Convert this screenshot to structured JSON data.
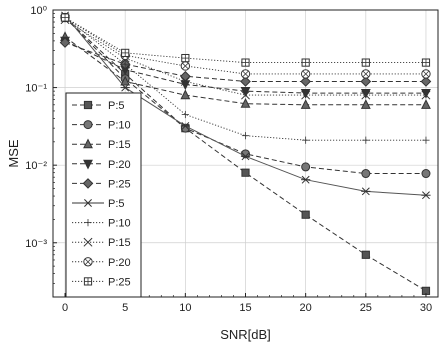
{
  "chart_data": {
    "type": "line",
    "title": "",
    "xlabel": "SNR[dB]",
    "ylabel": "MSE",
    "y_scale": "log",
    "xlim": [
      -1,
      31
    ],
    "ylim": [
      0.0002,
      1
    ],
    "grid": true,
    "legend_position": "left",
    "x": [
      0,
      5,
      10,
      15,
      20,
      25,
      30
    ],
    "x_ticks": [
      "0",
      "5",
      "10",
      "15",
      "20",
      "25",
      "30"
    ],
    "y_ticks": [
      "10⁰",
      "10⁻¹",
      "10⁻²",
      "10⁻³"
    ],
    "series": [
      {
        "name": "P:5",
        "style": "dashed",
        "marker": "square-filled",
        "values": [
          0.8,
          0.15,
          0.03,
          0.008,
          0.0023,
          0.0007,
          0.00024
        ]
      },
      {
        "name": "P:10",
        "style": "dashed",
        "marker": "circle-filled",
        "values": [
          0.8,
          0.13,
          0.03,
          0.014,
          0.0095,
          0.0078,
          0.0078
        ]
      },
      {
        "name": "P:15",
        "style": "dashed",
        "marker": "triangle-up-filled",
        "values": [
          0.45,
          0.12,
          0.08,
          0.062,
          0.06,
          0.06,
          0.06
        ]
      },
      {
        "name": "P:20",
        "style": "dashed",
        "marker": "triangle-down-filled",
        "values": [
          0.4,
          0.17,
          0.11,
          0.09,
          0.085,
          0.085,
          0.085
        ]
      },
      {
        "name": "P:25",
        "style": "dashed",
        "marker": "diamond-filled",
        "values": [
          0.38,
          0.2,
          0.14,
          0.12,
          0.12,
          0.12,
          0.12
        ]
      },
      {
        "name": "P:5",
        "style": "solid",
        "marker": "asterisk",
        "values": [
          0.85,
          0.1,
          0.032,
          0.013,
          0.0065,
          0.0046,
          0.0041
        ]
      },
      {
        "name": "P:10",
        "style": "dotted",
        "marker": "plus",
        "values": [
          0.8,
          0.2,
          0.045,
          0.024,
          0.021,
          0.021,
          0.021
        ]
      },
      {
        "name": "P:15",
        "style": "dotted",
        "marker": "x",
        "values": [
          0.75,
          0.24,
          0.12,
          0.08,
          0.08,
          0.08,
          0.08
        ]
      },
      {
        "name": "P:20",
        "style": "dotted",
        "marker": "circle-x",
        "values": [
          0.8,
          0.26,
          0.19,
          0.15,
          0.15,
          0.15,
          0.15
        ]
      },
      {
        "name": "P:25",
        "style": "dotted",
        "marker": "square-plus",
        "values": [
          0.8,
          0.28,
          0.24,
          0.21,
          0.21,
          0.21,
          0.21
        ]
      }
    ]
  }
}
